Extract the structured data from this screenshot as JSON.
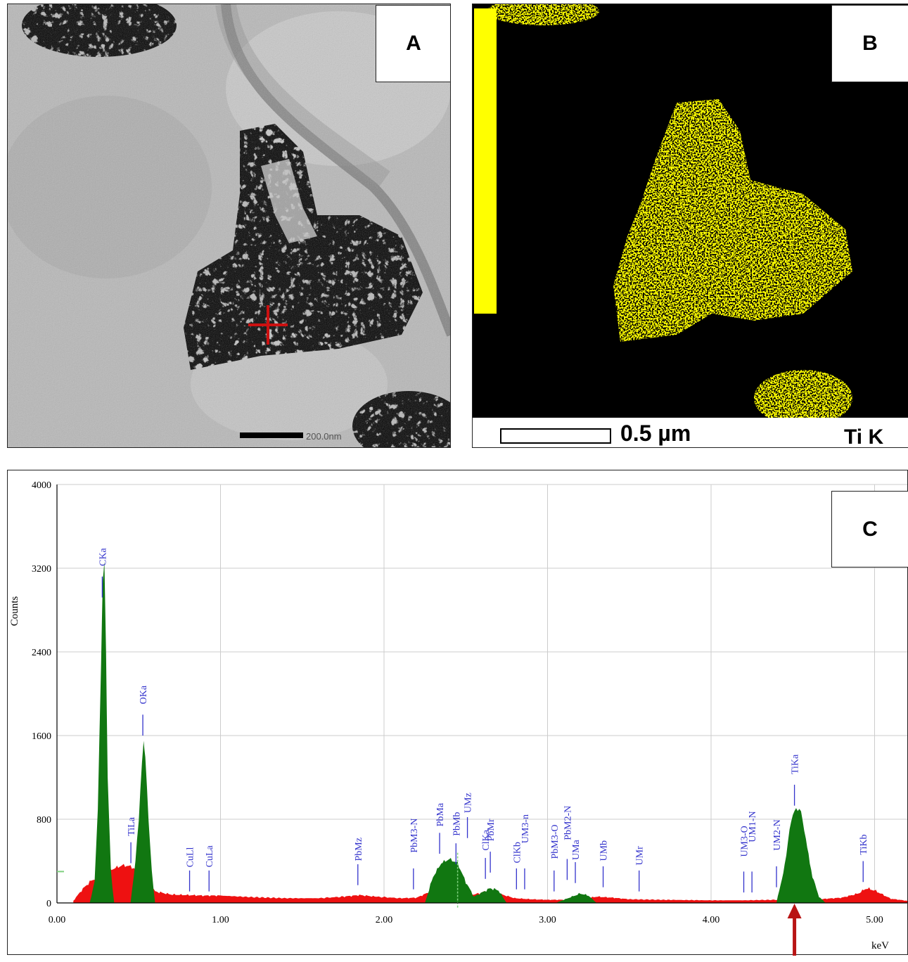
{
  "panel_a": {
    "label": "A",
    "scale_bar_text": "200.0nm"
  },
  "panel_b": {
    "label": "B",
    "scale_bar_text": "0.5 µm",
    "element_label": "Ti K",
    "map_color": "#ffff00"
  },
  "panel_c": {
    "label": "C"
  },
  "colors": {
    "series_red": "#ee1111",
    "series_green": "#117711",
    "peak_label": "#3333cc",
    "arrow": "#b81414"
  },
  "chart_data": {
    "type": "area",
    "title": "",
    "xlabel": "keV",
    "ylabel": "Counts",
    "xlim": [
      0,
      5.2
    ],
    "ylim": [
      0,
      4000
    ],
    "x_ticks": [
      "0.00",
      "1.00",
      "2.00",
      "3.00",
      "4.00",
      "5.00"
    ],
    "y_ticks": [
      "0",
      "800",
      "1600",
      "2400",
      "3200",
      "4000"
    ],
    "grid": true,
    "series": [
      {
        "name": "",
        "color": "#ee1111",
        "x": [
          0.1,
          0.15,
          0.2,
          0.25,
          0.3,
          0.35,
          0.4,
          0.45,
          0.5,
          0.55,
          0.6,
          0.7,
          0.8,
          0.9,
          1.0,
          1.2,
          1.4,
          1.6,
          1.75,
          1.85,
          1.95,
          2.1,
          2.2,
          2.3,
          2.35,
          2.4,
          2.45,
          2.5,
          2.55,
          2.6,
          2.65,
          2.7,
          2.8,
          2.9,
          3.0,
          3.1,
          3.2,
          3.3,
          3.4,
          3.5,
          3.7,
          4.0,
          4.2,
          4.4,
          4.45,
          4.5,
          4.55,
          4.6,
          4.65,
          4.7,
          4.8,
          4.9,
          4.95,
          5.0,
          5.1,
          5.2
        ],
        "y": [
          20,
          120,
          200,
          250,
          300,
          330,
          360,
          350,
          300,
          200,
          110,
          80,
          75,
          70,
          70,
          55,
          45,
          45,
          60,
          75,
          60,
          45,
          50,
          120,
          250,
          340,
          270,
          120,
          80,
          100,
          130,
          90,
          45,
          35,
          30,
          30,
          35,
          60,
          50,
          35,
          30,
          25,
          25,
          30,
          40,
          50,
          40,
          30,
          30,
          40,
          50,
          90,
          140,
          120,
          40,
          20
        ]
      },
      {
        "name": "",
        "color": "#117711",
        "x": [
          0.2,
          0.23,
          0.25,
          0.26,
          0.27,
          0.28,
          0.29,
          0.3,
          0.31,
          0.33,
          0.35,
          0.45,
          0.48,
          0.5,
          0.52,
          0.53,
          0.54,
          0.56,
          0.58,
          0.6,
          2.25,
          2.3,
          2.35,
          2.4,
          2.45,
          2.5,
          2.55,
          2.6,
          2.65,
          2.7,
          2.75,
          3.05,
          3.15,
          3.2,
          3.25,
          3.3,
          4.4,
          4.45,
          4.48,
          4.5,
          4.52,
          4.55,
          4.58,
          4.62,
          4.66,
          4.7
        ],
        "y": [
          0,
          200,
          900,
          1600,
          2300,
          3100,
          3250,
          2400,
          1200,
          300,
          0,
          0,
          400,
          800,
          1350,
          1550,
          1400,
          800,
          300,
          0,
          0,
          250,
          380,
          420,
          380,
          200,
          60,
          100,
          140,
          120,
          0,
          0,
          60,
          90,
          70,
          0,
          0,
          350,
          700,
          850,
          900,
          880,
          600,
          250,
          60,
          0
        ]
      }
    ],
    "peak_labels": [
      {
        "text": "CKa",
        "x": 0.277
      },
      {
        "text": "TiLa",
        "x": 0.452
      },
      {
        "text": "OKa",
        "x": 0.525
      },
      {
        "text": "CuLl",
        "x": 0.811
      },
      {
        "text": "CuLa",
        "x": 0.93
      },
      {
        "text": "PbMz",
        "x": 1.84
      },
      {
        "text": "PbM3-N",
        "x": 2.18
      },
      {
        "text": "PbMa",
        "x": 2.34
      },
      {
        "text": "PbMb",
        "x": 2.44
      },
      {
        "text": "UMz",
        "x": 2.51
      },
      {
        "text": "ClKa",
        "x": 2.62
      },
      {
        "text": "PbMr",
        "x": 2.65
      },
      {
        "text": "ClKb",
        "x": 2.81
      },
      {
        "text": "UM3-n",
        "x": 2.86
      },
      {
        "text": "PbM3-O",
        "x": 3.04
      },
      {
        "text": "PbM2-N",
        "x": 3.12
      },
      {
        "text": "UMa",
        "x": 3.17
      },
      {
        "text": "UMb",
        "x": 3.34
      },
      {
        "text": "UMr",
        "x": 3.56
      },
      {
        "text": "UM3-O",
        "x": 4.2
      },
      {
        "text": "UM1-N",
        "x": 4.25
      },
      {
        "text": "UM2-N",
        "x": 4.4
      },
      {
        "text": "TiKa",
        "x": 4.51
      },
      {
        "text": "TiKb",
        "x": 4.93
      }
    ],
    "marker_x": 4.51,
    "cursor_x": 2.45
  }
}
